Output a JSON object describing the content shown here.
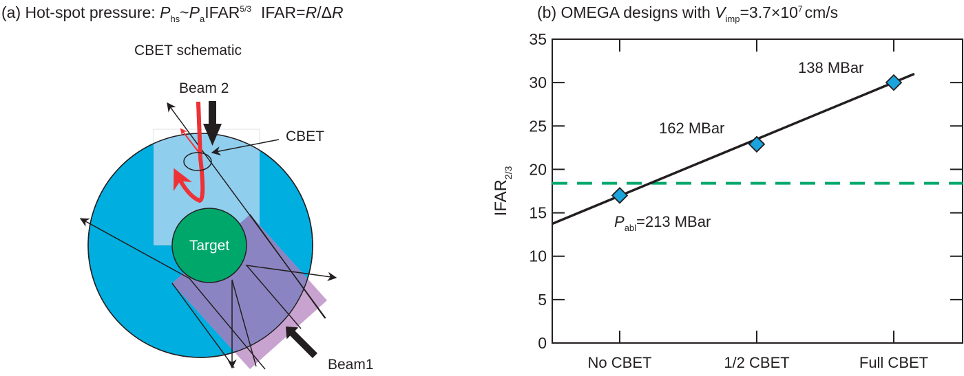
{
  "panel_a": {
    "title_prefix": "(a) Hot-spot pressure: ",
    "title_P": "P",
    "title_hs": "hs",
    "title_tilde": "~",
    "title_a": "a",
    "title_ifar": "IFAR",
    "title_exp": "5/3",
    "title_def": "IFAR=",
    "title_R": "R",
    "title_slash": "/Δ",
    "title_R2": "R",
    "schematic_title": "CBET schematic",
    "beam2_label": "Beam 2",
    "cbet_label": "CBET",
    "target_label": "Target",
    "beam1_label": "Beam1",
    "colors": {
      "plasma": "#00aee0",
      "target": "#00a76a",
      "beam2_region": "#9fd0ee",
      "beam1_region": "#8a85c2",
      "red_ray": "#ed3237"
    }
  },
  "chart_data": {
    "type": "line",
    "title_prefix": "(b) OMEGA designs with ",
    "title_V": "V",
    "title_sub": "imp",
    "title_value": "=3.7×10",
    "title_exp": "7",
    "title_unit": "cm/s",
    "ylabel": "IFAR",
    "ylabel_sub": "2/3",
    "xlabel": "",
    "categories": [
      "No CBET",
      "1/2 CBET",
      "Full CBET"
    ],
    "ylim": [
      0,
      35
    ],
    "yticks": [
      "0",
      "5",
      "10",
      "15",
      "20",
      "25",
      "30",
      "35"
    ],
    "points": {
      "name": "designs",
      "values": [
        17.0,
        22.9,
        30.0
      ],
      "marker": "diamond",
      "color": "#1aa3dc"
    },
    "fit_line": {
      "x": [
        -0.49,
        2.15
      ],
      "y": [
        13.75,
        31.0
      ],
      "color": "#231f20"
    },
    "threshold": {
      "y": 18.4,
      "style": "dashed",
      "color": "#00a86b"
    },
    "annotations": [
      {
        "prefix": "P",
        "sub": "abl",
        "text": "=213 MBar"
      },
      {
        "text": "162 MBar"
      },
      {
        "text": "138 MBar"
      }
    ],
    "grid": false
  }
}
